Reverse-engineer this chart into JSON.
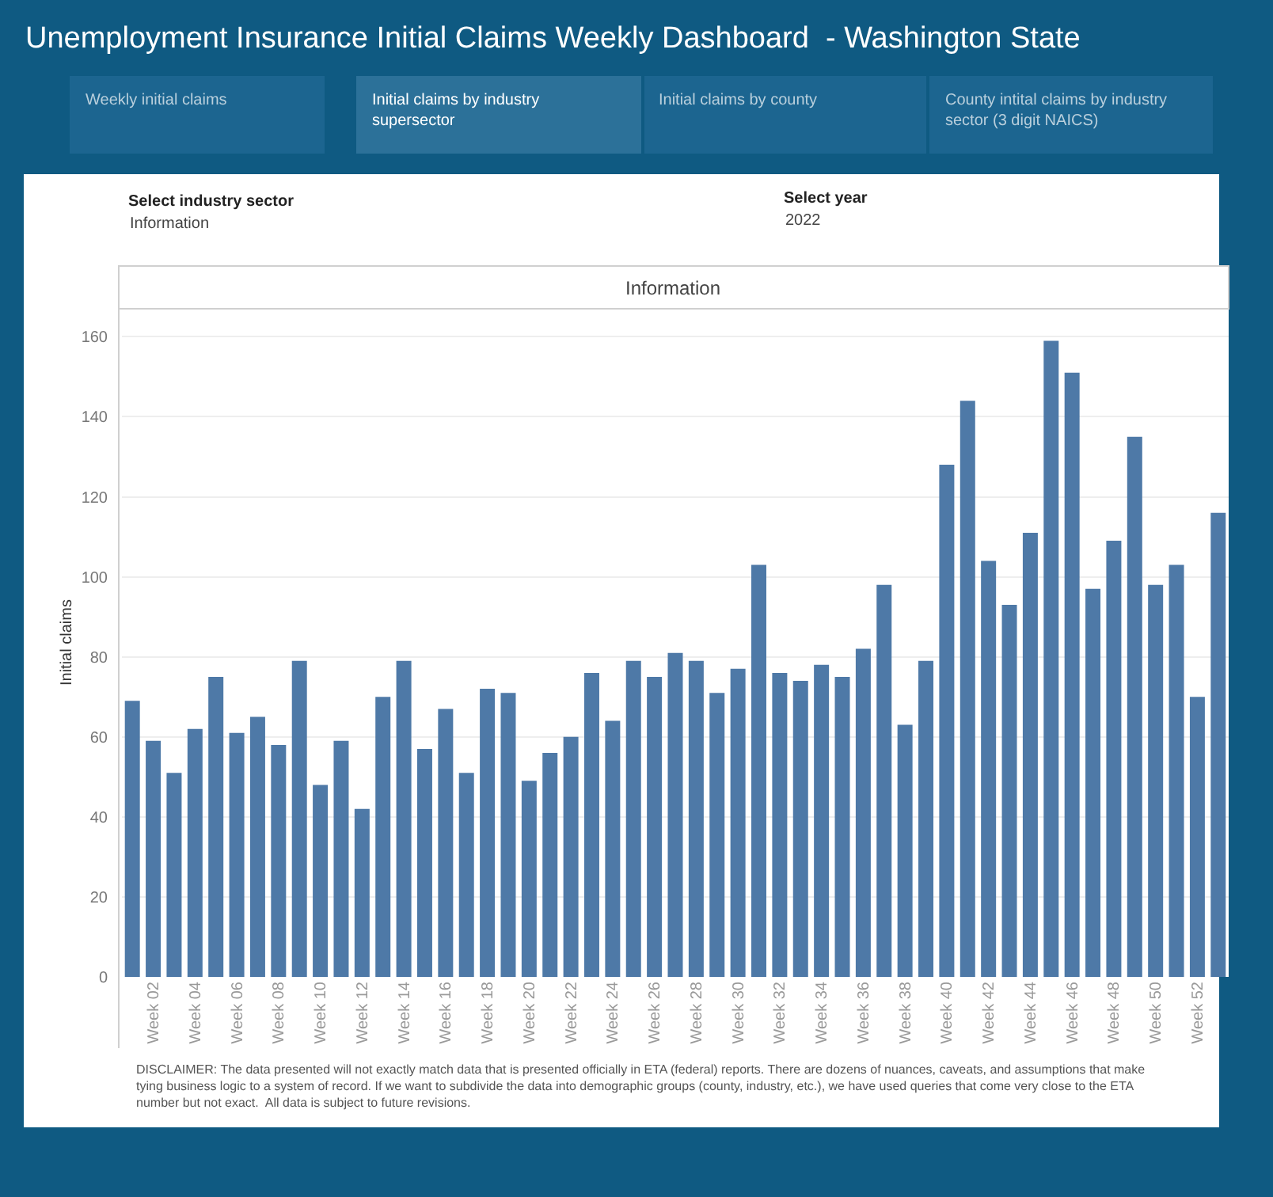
{
  "chart_data": {
    "type": "bar",
    "title": "Unemployment Insurance Initial Claims Weekly Dashboard  - Washington State",
    "subtitle": "Information",
    "ylabel": "Initial claims",
    "categories": [
      null,
      "Week 02",
      null,
      "Week 04",
      null,
      "Week 06",
      null,
      "Week 08",
      null,
      "Week 10",
      null,
      "Week 12",
      null,
      "Week 14",
      null,
      "Week 16",
      null,
      "Week 18",
      null,
      "Week 20",
      null,
      "Week 22",
      null,
      "Week 24",
      null,
      "Week 26",
      null,
      "Week 28",
      null,
      "Week 30",
      null,
      "Week 32",
      null,
      "Week 34",
      null,
      "Week 36",
      null,
      "Week 38",
      null,
      "Week 40",
      null,
      "Week 42",
      null,
      "Week 44",
      null,
      "Week 46",
      null,
      "Week 48",
      null,
      "Week 50",
      null,
      "Week 52",
      null
    ],
    "values": [
      69,
      59,
      51,
      62,
      75,
      61,
      65,
      58,
      79,
      48,
      59,
      42,
      70,
      79,
      57,
      67,
      51,
      72,
      71,
      49,
      56,
      60,
      76,
      64,
      79,
      75,
      81,
      79,
      71,
      77,
      103,
      76,
      74,
      78,
      75,
      82,
      98,
      63,
      79,
      128,
      144,
      104,
      93,
      111,
      159,
      151,
      97,
      109,
      135,
      98,
      103,
      70,
      116
    ],
    "color": "#4e79a7",
    "ylim": [
      0,
      167
    ],
    "yticks": [
      0,
      20,
      40,
      60,
      80,
      100,
      120,
      140,
      160
    ],
    "grid": "y",
    "annotations": [
      "Weekly initial claims",
      "Initial claims by industry\nsupersector",
      "Initial claims by county",
      "County intital claims by industry\nsector (3 digit NAICS)",
      "Select industry sector",
      "Information",
      "Select year",
      "2022",
      "DISCLAIMER: The data presented will not exactly match data that is presented officially in ETA (federal) reports. There are dozens of nuances, caveats, and assumptions that make\ntying business logic to a system of record. If we want to subdivide the data into demographic groups (county, industry, etc.), we have used queries that come very close to the ETA\nnumber but not exact.  All data is subject to future revisions."
    ]
  }
}
